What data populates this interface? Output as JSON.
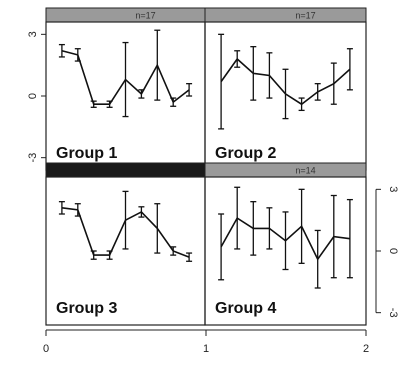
{
  "chart_data": {
    "type": "line",
    "x_axis": {
      "ticks": [
        0,
        1,
        2
      ],
      "labels": [
        "0",
        "1",
        "2"
      ],
      "range": [
        0,
        2
      ]
    },
    "y_axis": {
      "ticks": [
        3,
        0,
        -3
      ],
      "labels": [
        "3",
        "0",
        "-3"
      ],
      "range": [
        -3.6,
        3.6
      ]
    },
    "panels": [
      {
        "label": "Group 1",
        "strip_text": "n=17",
        "strip_color": "#9a9a9a",
        "x_range": [
          0,
          1
        ],
        "x": [
          0.1,
          0.2,
          0.3,
          0.4,
          0.5,
          0.6,
          0.7,
          0.8,
          0.9
        ],
        "y": [
          2.2,
          2.0,
          -0.4,
          -0.4,
          0.8,
          0.1,
          1.5,
          -0.3,
          0.3
        ],
        "err": [
          0.3,
          0.3,
          0.15,
          0.15,
          1.8,
          0.2,
          1.7,
          0.2,
          0.3
        ]
      },
      {
        "label": "Group 2",
        "strip_text": "n=17",
        "strip_color": "#9a9a9a",
        "x_range": [
          1,
          2
        ],
        "x": [
          1.1,
          1.2,
          1.3,
          1.4,
          1.5,
          1.6,
          1.7,
          1.8,
          1.9
        ],
        "y": [
          0.7,
          1.8,
          1.1,
          1.0,
          0.1,
          -0.4,
          0.2,
          0.6,
          1.3
        ],
        "err": [
          2.3,
          0.4,
          1.3,
          1.1,
          1.2,
          0.3,
          0.4,
          1.0,
          1.0
        ]
      },
      {
        "label": "Group 3",
        "strip_text": "",
        "strip_color": "#1a1a1a",
        "x_range": [
          0,
          1
        ],
        "x": [
          0.1,
          0.2,
          0.3,
          0.4,
          0.5,
          0.6,
          0.7,
          0.8,
          0.9
        ],
        "y": [
          2.1,
          2.0,
          -0.2,
          -0.2,
          1.5,
          1.9,
          1.1,
          0.0,
          -0.3
        ],
        "err": [
          0.3,
          0.3,
          0.2,
          0.2,
          1.4,
          0.25,
          1.2,
          0.2,
          0.2
        ]
      },
      {
        "label": "Group 4",
        "strip_text": "n=14",
        "strip_color": "#9a9a9a",
        "x_range": [
          1,
          2
        ],
        "x": [
          1.1,
          1.2,
          1.3,
          1.4,
          1.5,
          1.6,
          1.7,
          1.8,
          1.9
        ],
        "y": [
          0.2,
          1.6,
          1.1,
          1.1,
          0.5,
          1.2,
          -0.4,
          0.7,
          0.6
        ],
        "err": [
          1.6,
          1.5,
          1.3,
          1.0,
          1.4,
          1.8,
          1.4,
          2.0,
          1.9
        ]
      }
    ]
  }
}
